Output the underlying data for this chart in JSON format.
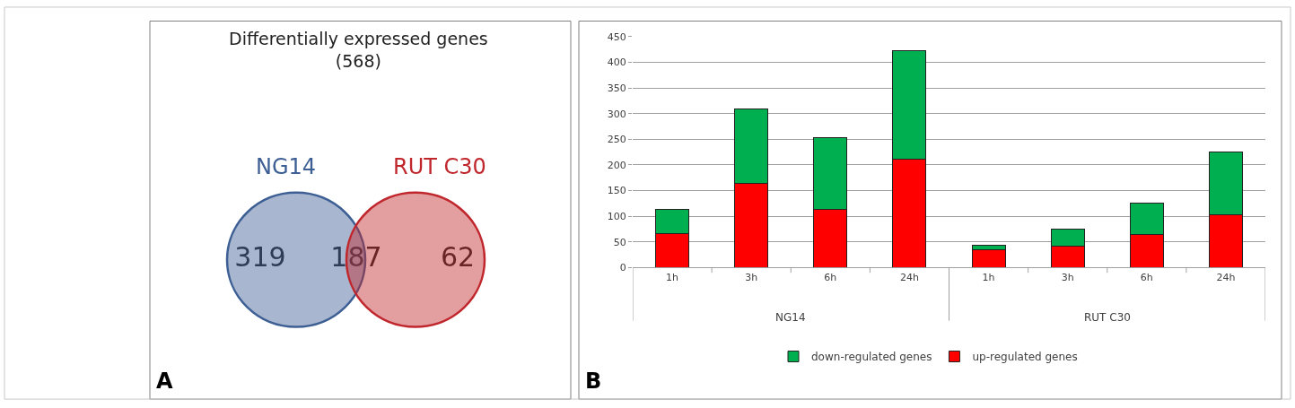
{
  "chart_data": [
    {
      "type": "other",
      "title": "Differentially expressed genes\n(568)",
      "categories": [
        "NG14",
        null,
        "RUT C30"
      ],
      "values": [
        319,
        187,
        62
      ],
      "data_labels": true,
      "annotations": [
        "A"
      ]
    },
    {
      "type": "bar",
      "stacked": true,
      "categories": [
        "1h",
        "3h",
        "6h",
        "24h",
        "1h",
        "3h",
        "6h",
        "24h"
      ],
      "series": [
        {
          "name": "up-regulated genes",
          "color": "#ff0000",
          "values": [
            66,
            164,
            113,
            211,
            34,
            41,
            65,
            103
          ]
        },
        {
          "name": "down-regulated genes",
          "color": "#00b050",
          "values": [
            47,
            146,
            141,
            211,
            10,
            34,
            61,
            123
          ]
        }
      ],
      "ylim": [
        0,
        450
      ],
      "yticks": [
        0,
        50,
        100,
        150,
        200,
        250,
        300,
        350,
        400,
        450
      ],
      "grid": "y",
      "legend": "bottom",
      "annotations": [
        "NG14",
        "RUT C30",
        "B"
      ]
    }
  ]
}
